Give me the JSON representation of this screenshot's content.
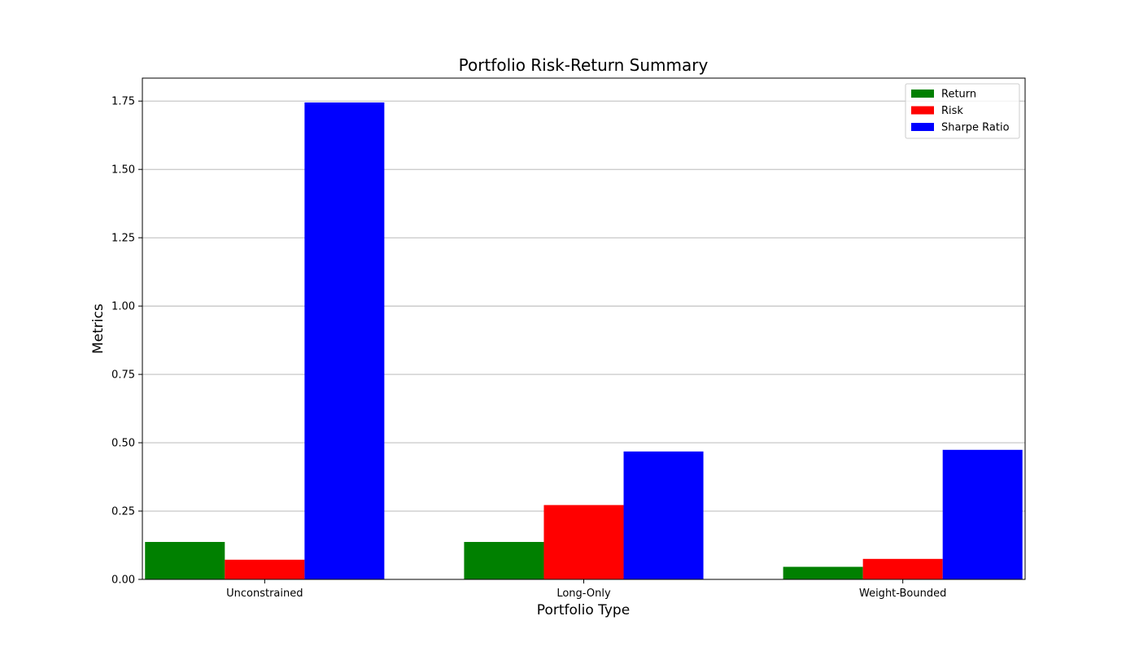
{
  "chart_data": {
    "type": "bar",
    "title": "Portfolio Risk-Return Summary",
    "xlabel": "Portfolio Type",
    "ylabel": "Metrics",
    "categories": [
      "Unconstrained",
      "Long-Only",
      "Weight-Bounded"
    ],
    "series": [
      {
        "name": "Return",
        "color": "#008000",
        "values": [
          0.137,
          0.137,
          0.046
        ]
      },
      {
        "name": "Risk",
        "color": "#ff0000",
        "values": [
          0.072,
          0.272,
          0.075
        ]
      },
      {
        "name": "Sharpe Ratio",
        "color": "#0000ff",
        "values": [
          1.745,
          0.468,
          0.474
        ]
      }
    ],
    "ylim": [
      0,
      1.834
    ],
    "yticks": [
      "0.00",
      "0.25",
      "0.50",
      "0.75",
      "1.00",
      "1.25",
      "1.50",
      "1.75"
    ],
    "grid": "y",
    "legend_position": "top-right"
  }
}
